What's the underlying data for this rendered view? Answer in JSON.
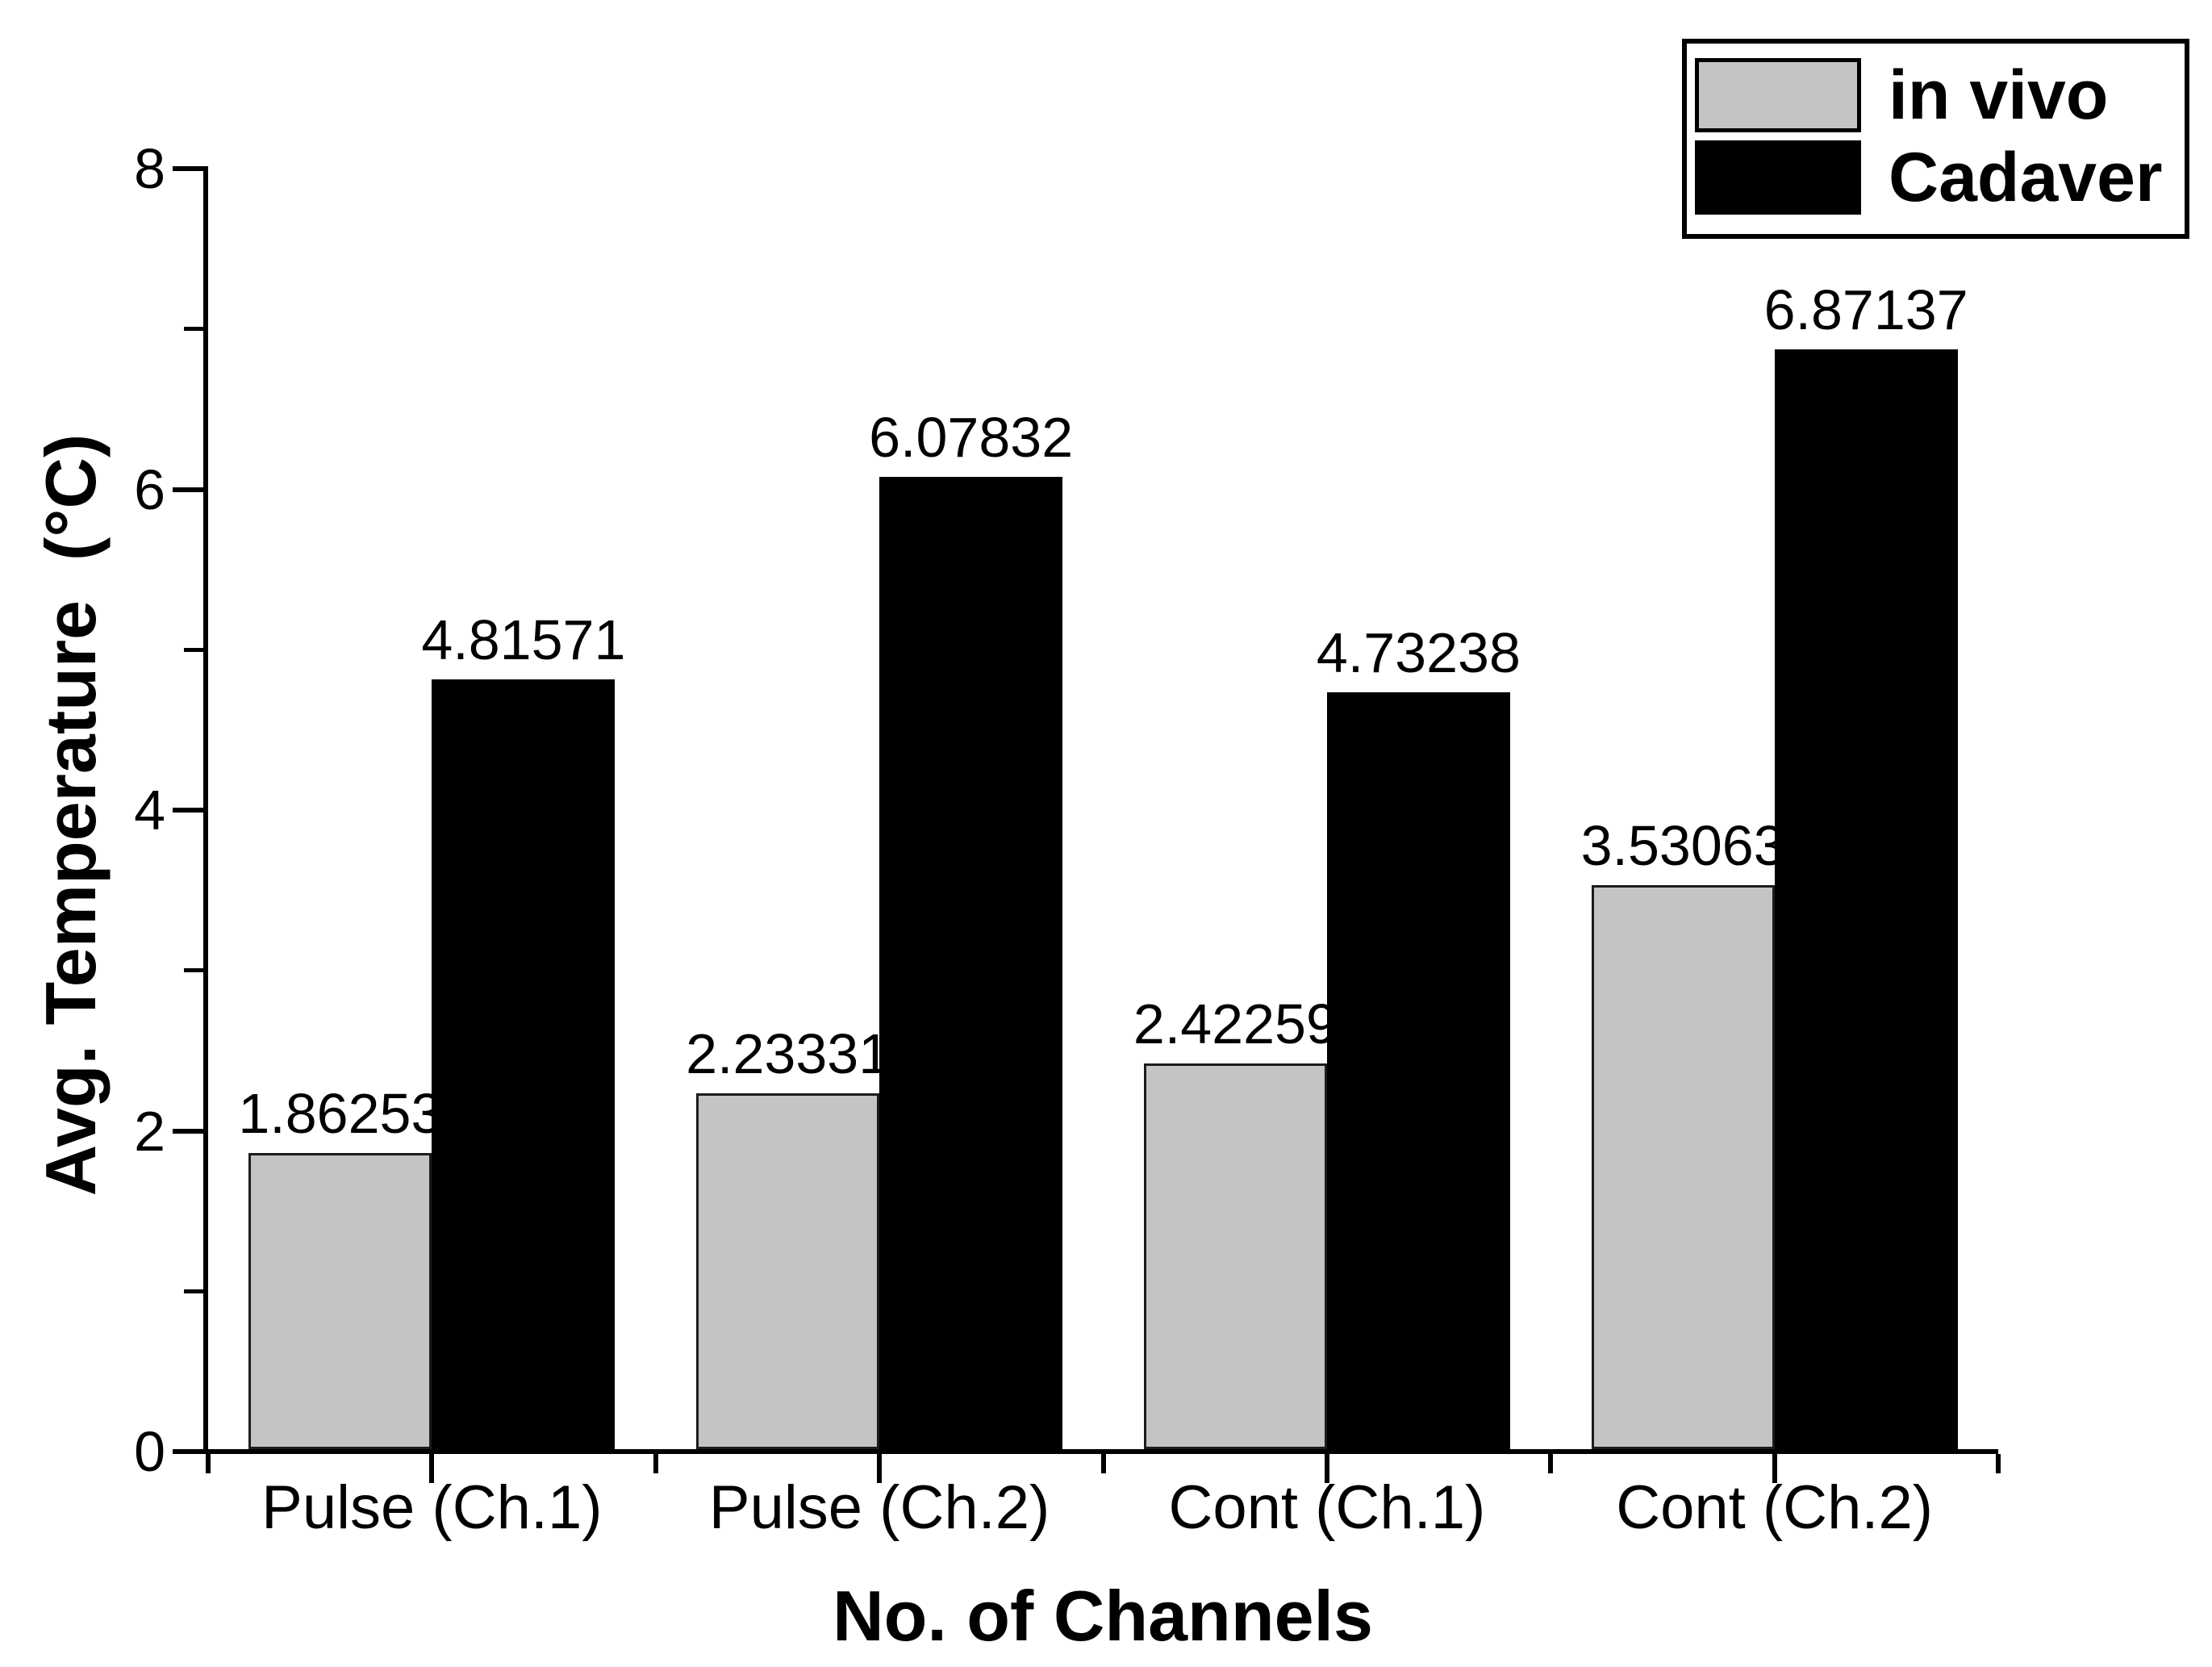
{
  "chart_data": {
    "type": "bar",
    "title": "",
    "xlabel": "No. of Channels",
    "ylabel": "Avg. Temperature  (°C)",
    "categories": [
      "Pulse (Ch.1)",
      "Pulse (Ch.2)",
      "Cont (Ch.1)",
      "Cont (Ch.2)"
    ],
    "series": [
      {
        "name": "in vivo",
        "color": "#c4c4c4",
        "border_color": "#1c1c1c",
        "values": [
          1.86253,
          2.23331,
          2.42259,
          3.53063
        ],
        "labels": [
          "1.86253",
          "2.23331",
          "2.42259",
          "3.53063"
        ]
      },
      {
        "name": "Cadaver",
        "color": "#000000",
        "border_color": "#000000",
        "values": [
          4.81571,
          6.07832,
          4.73238,
          6.87137
        ],
        "labels": [
          "4.81571",
          "6.07832",
          "4.73238",
          "6.87137"
        ]
      }
    ],
    "ylim": [
      0,
      8
    ],
    "y_major_ticks": [
      0,
      2,
      4,
      6,
      8
    ],
    "y_major_tick_labels": [
      "0",
      "2",
      "4",
      "6",
      "8"
    ],
    "y_minor_ticks": [
      1,
      3,
      5,
      7
    ],
    "grid": false,
    "bar_value_labels_shown": true,
    "legend_position": "top-right",
    "axis_color": "#000000",
    "text_color": "#000000",
    "background_color": "#ffffff"
  }
}
